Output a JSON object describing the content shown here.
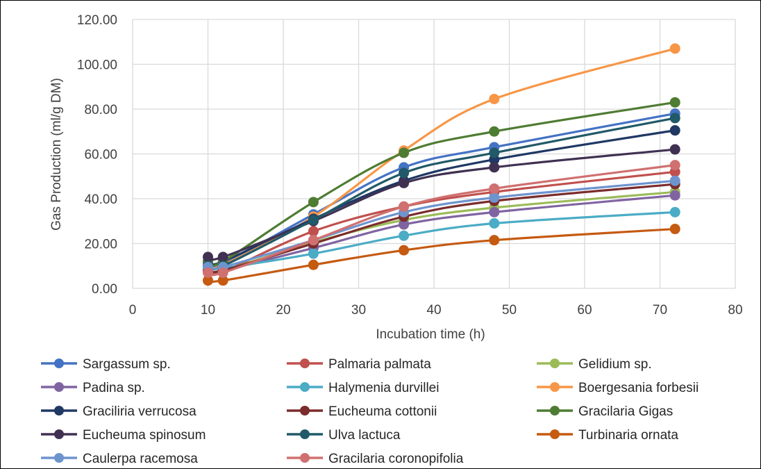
{
  "chart_data": {
    "type": "line",
    "title": "",
    "xlabel": "Incubation time (h)",
    "ylabel": "Gas Production (ml/g DM)",
    "xlim": [
      0,
      80
    ],
    "ylim": [
      0,
      120
    ],
    "xticks": [
      "0",
      "10",
      "20",
      "30",
      "40",
      "50",
      "60",
      "70",
      "80"
    ],
    "yticks": [
      "0.00",
      "20.00",
      "40.00",
      "60.00",
      "80.00",
      "100.00",
      "120.00"
    ],
    "grid": true,
    "smooth": true,
    "legend_position": "bottom",
    "x": [
      10,
      12,
      24,
      36,
      48,
      72
    ],
    "series": [
      {
        "name": "Sargassum sp.",
        "color": "#4472C4",
        "values": [
          11.0,
          11.0,
          33.0,
          54.0,
          63.0,
          78.0
        ]
      },
      {
        "name": "Palmaria palmata",
        "color": "#C0504D",
        "values": [
          7.5,
          7.5,
          25.5,
          36.5,
          43.0,
          52.0
        ]
      },
      {
        "name": "Gelidium sp.",
        "color": "#9BBB59",
        "values": [
          8.0,
          8.0,
          20.5,
          30.5,
          36.0,
          43.0
        ]
      },
      {
        "name": "Padina sp.",
        "color": "#8064A2",
        "values": [
          8.0,
          8.0,
          18.0,
          28.5,
          34.0,
          41.5
        ]
      },
      {
        "name": "Halymenia durvillei",
        "color": "#4BACC6",
        "values": [
          9.0,
          9.0,
          15.5,
          23.5,
          29.0,
          34.0
        ]
      },
      {
        "name": "Boergesania forbesii",
        "color": "#F79646",
        "values": [
          10.5,
          10.5,
          32.0,
          61.5,
          84.5,
          107.0
        ]
      },
      {
        "name": "Graciliria verrucosa",
        "color": "#1F3864",
        "values": [
          12.0,
          12.0,
          31.0,
          48.0,
          57.5,
          70.5
        ]
      },
      {
        "name": "Eucheuma cottonii",
        "color": "#7B2C2C",
        "values": [
          8.0,
          8.0,
          20.0,
          32.0,
          39.0,
          46.5
        ]
      },
      {
        "name": "Gracilaria Gigas",
        "color": "#4F7C33",
        "values": [
          12.0,
          12.0,
          38.5,
          60.5,
          70.0,
          83.0
        ]
      },
      {
        "name": "Eucheuma spinosum",
        "color": "#403152",
        "values": [
          14.0,
          14.0,
          30.0,
          47.0,
          54.0,
          62.0
        ]
      },
      {
        "name": "Ulva lactuca",
        "color": "#215968",
        "values": [
          10.0,
          10.0,
          30.5,
          51.5,
          60.5,
          76.0
        ]
      },
      {
        "name": "Turbinaria ornata",
        "color": "#C55A11",
        "values": [
          3.5,
          3.5,
          10.5,
          17.0,
          21.5,
          26.5
        ]
      },
      {
        "name": "Caulerpa racemosa",
        "color": "#6E94CE",
        "values": [
          9.5,
          9.5,
          21.5,
          34.0,
          40.5,
          48.0
        ]
      },
      {
        "name": "Gracilaria coronopifolia",
        "color": "#D07070",
        "values": [
          7.0,
          7.0,
          21.5,
          36.5,
          44.5,
          55.0
        ]
      }
    ]
  }
}
